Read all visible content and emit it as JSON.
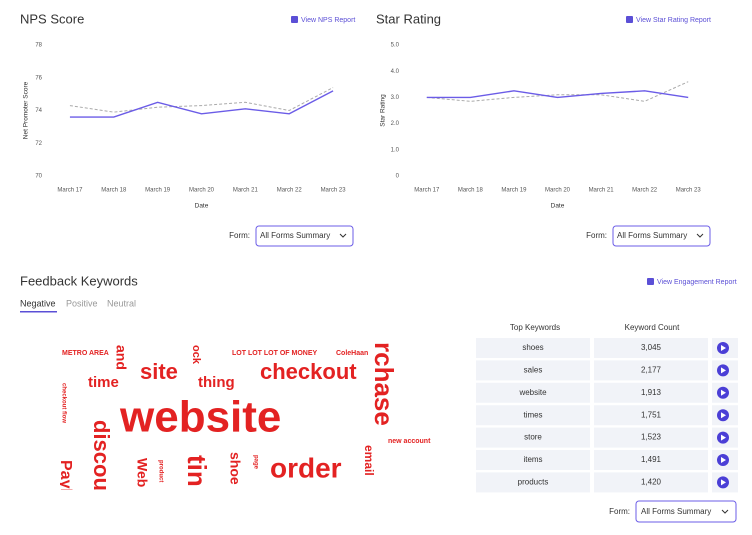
{
  "chart_data": [
    {
      "type": "line",
      "title": "NPS Score",
      "link": "View NPS Report",
      "x_label": "Date",
      "y_label": "Net Promoter Score",
      "categories": [
        "March 17",
        "March 18",
        "March 19",
        "March 20",
        "March 21",
        "March 22",
        "March 23"
      ],
      "series": [
        {
          "color": "#6b5ce7",
          "style": "solid",
          "values": [
            73.6,
            73.6,
            74.5,
            73.8,
            74.1,
            73.8,
            75.2
          ]
        },
        {
          "color": "#aaaaaa",
          "style": "dashed",
          "values": [
            74.3,
            73.9,
            74.2,
            74.3,
            74.5,
            74.0,
            75.4
          ]
        }
      ],
      "ylim": [
        70,
        78
      ],
      "yticks": [
        70,
        72,
        74,
        76,
        78
      ],
      "form_label": "Form:",
      "form_value": "All Forms Summary"
    },
    {
      "type": "line",
      "title": "Star Rating",
      "link": "View Star Rating Report",
      "x_label": "Date",
      "y_label": "Star Rating",
      "categories": [
        "March 17",
        "March 18",
        "March 19",
        "March 20",
        "March 21",
        "March 22",
        "March 23"
      ],
      "series": [
        {
          "color": "#6b5ce7",
          "style": "solid",
          "values": [
            3.0,
            3.0,
            3.25,
            3.0,
            3.15,
            3.25,
            3.0
          ]
        },
        {
          "color": "#aaaaaa",
          "style": "dashed",
          "values": [
            3.0,
            2.85,
            3.0,
            3.1,
            3.1,
            2.85,
            3.6
          ]
        }
      ],
      "ylim": [
        0,
        5
      ],
      "yticks": [
        0,
        {
          "value": 1,
          "label": "1.0"
        },
        {
          "value": 2,
          "label": "2.0"
        },
        {
          "value": 3,
          "label": "3.0"
        },
        {
          "value": 4,
          "label": "4.0"
        },
        {
          "value": 5,
          "label": "5.0"
        }
      ],
      "form_label": "Form:",
      "form_value": "All Forms Summary"
    }
  ],
  "keywords": {
    "title": "Feedback Keywords",
    "link": "View Engagement Report",
    "tabs": [
      "Negative",
      "Positive",
      "Neutral"
    ],
    "words": [
      "METRO AREA",
      "and",
      "site",
      "time",
      "thing",
      "ock",
      "LOT LOT LOT OF MONEY",
      "ColeHaan",
      "checkout",
      "rchase",
      "checkout flow",
      "website",
      "discou",
      "tin",
      "shoe",
      "order",
      "email",
      "new account",
      "Payl",
      "Web",
      "product",
      "page"
    ],
    "table": {
      "headers": [
        "Top Keywords",
        "Keyword Count"
      ],
      "rows": [
        [
          "shoes",
          "3,045"
        ],
        [
          "sales",
          "2,177"
        ],
        [
          "website",
          "1,913"
        ],
        [
          "times",
          "1,751"
        ],
        [
          "store",
          "1,523"
        ],
        [
          "items",
          "1,491"
        ],
        [
          "products",
          "1,420"
        ]
      ]
    },
    "form_label": "Form:",
    "form_value": "All Forms Summary"
  }
}
